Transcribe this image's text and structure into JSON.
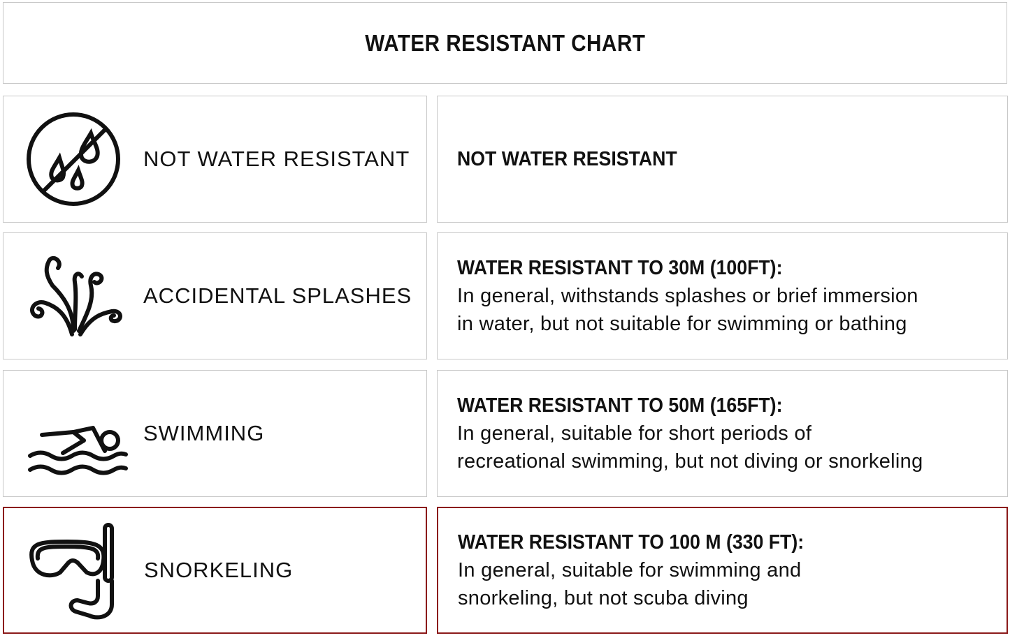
{
  "title": "WATER RESISTANT CHART",
  "highlight_color": "#8b1a1a",
  "border_color": "#c8c8c8",
  "rows": [
    {
      "icon": "no-water-drops-icon",
      "label": "NOT WATER RESISTANT",
      "heading": "NOT WATER RESISTANT",
      "lines": [],
      "highlighted": false
    },
    {
      "icon": "splash-icon",
      "label": "ACCIDENTAL SPLASHES",
      "heading": "WATER RESISTANT TO 30M (100FT):",
      "lines": [
        "In general, withstands splashes or brief immersion",
        "in water, but not suitable for swimming or bathing"
      ],
      "highlighted": false
    },
    {
      "icon": "swimmer-icon",
      "label": "SWIMMING",
      "heading": "WATER RESISTANT TO 50M (165FT):",
      "lines": [
        "In general, suitable for short periods of",
        "recreational swimming, but not diving or snorkeling"
      ],
      "highlighted": false
    },
    {
      "icon": "snorkel-mask-icon",
      "label": "SNORKELING",
      "heading": "WATER RESISTANT TO 100 M (330 FT):",
      "lines": [
        "In general, suitable for swimming and",
        "snorkeling, but not scuba diving"
      ],
      "highlighted": true
    }
  ]
}
